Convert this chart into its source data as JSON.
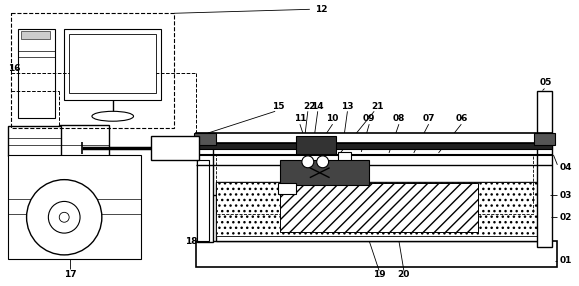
{
  "bg_color": "#ffffff",
  "line_color": "#000000",
  "fig_width": 5.79,
  "fig_height": 2.86,
  "dpi": 100,
  "font_size": 6.5
}
